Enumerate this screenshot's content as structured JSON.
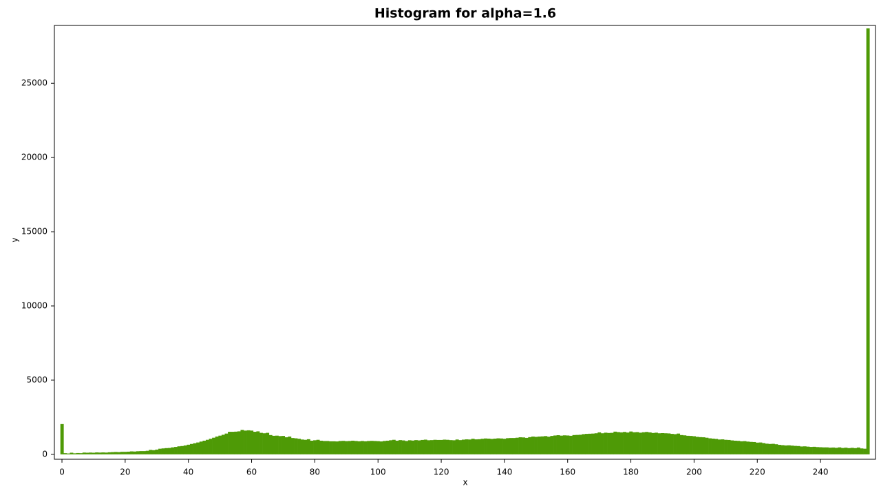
{
  "chart_data": {
    "type": "histogram",
    "title": "Histogram for alpha=1.6",
    "xlabel": "x",
    "ylabel": "y",
    "color": "#4e9a06",
    "bins": [
      -0.5,
      0.5,
      1.5,
      2.5,
      3.5,
      4.5,
      5.5,
      6.5,
      7.5,
      8.5,
      9.5,
      10.5,
      11.5,
      12.5,
      13.5,
      14.5,
      15.5,
      16.5,
      17.5,
      18.5,
      19.5,
      20.5,
      21.5,
      22.5,
      23.5,
      24.5,
      25.5,
      26.5,
      27.5,
      28.5,
      29.5,
      30.5,
      31.5,
      32.5,
      33.5,
      34.5,
      35.5,
      36.5,
      37.5,
      38.5,
      39.5,
      40.5,
      41.5,
      42.5,
      43.5,
      44.5,
      45.5,
      46.5,
      47.5,
      48.5,
      49.5,
      50.5,
      51.5,
      52.5,
      53.5,
      54.5,
      55.5,
      56.5,
      57.5,
      58.5,
      59.5,
      60.5,
      61.5,
      62.5,
      63.5,
      64.5,
      65.5,
      66.5,
      67.5,
      68.5,
      69.5,
      70.5,
      71.5,
      72.5,
      73.5,
      74.5,
      75.5,
      76.5,
      77.5,
      78.5,
      79.5,
      80.5,
      81.5,
      82.5,
      83.5,
      84.5,
      85.5,
      86.5,
      87.5,
      88.5,
      89.5,
      90.5,
      91.5,
      92.5,
      93.5,
      94.5,
      95.5,
      96.5,
      97.5,
      98.5,
      99.5,
      100.5,
      101.5,
      102.5,
      103.5,
      104.5,
      105.5,
      106.5,
      107.5,
      108.5,
      109.5,
      110.5,
      111.5,
      112.5,
      113.5,
      114.5,
      115.5,
      116.5,
      117.5,
      118.5,
      119.5,
      120.5,
      121.5,
      122.5,
      123.5,
      124.5,
      125.5,
      126.5,
      127.5,
      128.5,
      129.5,
      130.5,
      131.5,
      132.5,
      133.5,
      134.5,
      135.5,
      136.5,
      137.5,
      138.5,
      139.5,
      140.5,
      141.5,
      142.5,
      143.5,
      144.5,
      145.5,
      146.5,
      147.5,
      148.5,
      149.5,
      150.5,
      151.5,
      152.5,
      153.5,
      154.5,
      155.5,
      156.5,
      157.5,
      158.5,
      159.5,
      160.5,
      161.5,
      162.5,
      163.5,
      164.5,
      165.5,
      166.5,
      167.5,
      168.5,
      169.5,
      170.5,
      171.5,
      172.5,
      173.5,
      174.5,
      175.5,
      176.5,
      177.5,
      178.5,
      179.5,
      180.5,
      181.5,
      182.5,
      183.5,
      184.5,
      185.5,
      186.5,
      187.5,
      188.5,
      189.5,
      190.5,
      191.5,
      192.5,
      193.5,
      194.5,
      195.5,
      196.5,
      197.5,
      198.5,
      199.5,
      200.5,
      201.5,
      202.5,
      203.5,
      204.5,
      205.5,
      206.5,
      207.5,
      208.5,
      209.5,
      210.5,
      211.5,
      212.5,
      213.5,
      214.5,
      215.5,
      216.5,
      217.5,
      218.5,
      219.5,
      220.5,
      221.5,
      222.5,
      223.5,
      224.5,
      225.5,
      226.5,
      227.5,
      228.5,
      229.5,
      230.5,
      231.5,
      232.5,
      233.5,
      234.5,
      235.5,
      236.5,
      237.5,
      238.5,
      239.5,
      240.5,
      241.5,
      242.5,
      243.5,
      244.5,
      245.5,
      246.5,
      247.5,
      248.5,
      249.5,
      250.5,
      251.5,
      252.5,
      253.5,
      254.5,
      255.5
    ],
    "values": [
      2040,
      80,
      60,
      110,
      70,
      90,
      80,
      120,
      110,
      120,
      110,
      130,
      120,
      130,
      120,
      140,
      150,
      160,
      150,
      170,
      170,
      180,
      200,
      190,
      210,
      220,
      220,
      240,
      300,
      280,
      320,
      380,
      400,
      420,
      430,
      470,
      500,
      540,
      560,
      600,
      650,
      700,
      750,
      800,
      860,
      920,
      980,
      1050,
      1120,
      1200,
      1260,
      1320,
      1400,
      1520,
      1520,
      1530,
      1550,
      1650,
      1600,
      1620,
      1600,
      1520,
      1550,
      1450,
      1420,
      1450,
      1300,
      1250,
      1260,
      1230,
      1240,
      1150,
      1200,
      1100,
      1080,
      1050,
      1000,
      980,
      1020,
      920,
      950,
      980,
      920,
      900,
      900,
      880,
      880,
      870,
      900,
      910,
      890,
      900,
      920,
      900,
      880,
      900,
      880,
      900,
      910,
      900,
      890,
      870,
      900,
      920,
      950,
      980,
      920,
      960,
      940,
      900,
      950,
      930,
      960,
      940,
      970,
      990,
      950,
      960,
      980,
      970,
      970,
      990,
      980,
      960,
      950,
      1000,
      960,
      990,
      1010,
      1000,
      1050,
      1010,
      1020,
      1050,
      1070,
      1060,
      1040,
      1060,
      1080,
      1070,
      1050,
      1090,
      1100,
      1100,
      1120,
      1150,
      1140,
      1110,
      1160,
      1200,
      1180,
      1200,
      1210,
      1230,
      1190,
      1240,
      1270,
      1290,
      1260,
      1280,
      1270,
      1250,
      1300,
      1310,
      1320,
      1360,
      1380,
      1390,
      1400,
      1420,
      1480,
      1420,
      1460,
      1440,
      1450,
      1530,
      1500,
      1480,
      1510,
      1470,
      1540,
      1490,
      1500,
      1460,
      1490,
      1510,
      1480,
      1440,
      1460,
      1420,
      1430,
      1420,
      1410,
      1380,
      1360,
      1400,
      1300,
      1280,
      1250,
      1240,
      1220,
      1180,
      1160,
      1150,
      1120,
      1080,
      1060,
      1040,
      1000,
      1010,
      980,
      970,
      940,
      920,
      910,
      880,
      890,
      860,
      840,
      830,
      790,
      800,
      760,
      720,
      700,
      710,
      680,
      640,
      620,
      600,
      610,
      590,
      570,
      560,
      530,
      540,
      520,
      500,
      510,
      490,
      480,
      470,
      470,
      450,
      460,
      440,
      470,
      430,
      450,
      420,
      440,
      420,
      460,
      400,
      380,
      28700
    ],
    "xlim": [
      -2.4,
      257.4
    ],
    "xticks": [
      0,
      20,
      40,
      60,
      80,
      100,
      120,
      140,
      160,
      180,
      200,
      220,
      240
    ],
    "ylim": [
      -330,
      28900
    ],
    "yticks": [
      0,
      5000,
      10000,
      15000,
      20000,
      25000
    ]
  }
}
